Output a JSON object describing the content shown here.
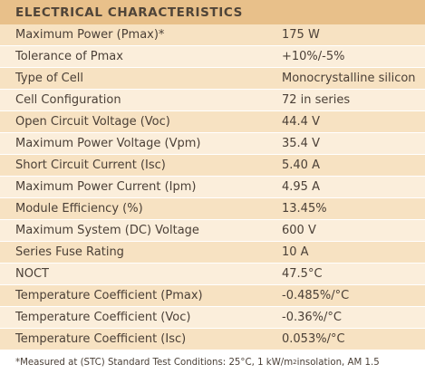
{
  "title": "ELECTRICAL CHARACTERISTICS",
  "rows": [
    {
      "label": "Maximum Power (Pmax)*",
      "value": "175 W"
    },
    {
      "label": "Tolerance of Pmax",
      "value": "+10%/-5%"
    },
    {
      "label": "Type of Cell",
      "value": "Monocrystalline silicon"
    },
    {
      "label": "Cell Configuration",
      "value": "72 in series"
    },
    {
      "label": "Open Circuit Voltage (Voc)",
      "value": "44.4 V"
    },
    {
      "label": "Maximum Power Voltage (Vpm)",
      "value": "35.4 V"
    },
    {
      "label": "Short Circuit Current (Isc)",
      "value": "5.40 A"
    },
    {
      "label": "Maximum Power Current (Ipm)",
      "value": "4.95 A"
    },
    {
      "label": "Module Efficiency (%)",
      "value": "13.45%"
    },
    {
      "label": "Maximum System (DC) Voltage",
      "value": "600 V"
    },
    {
      "label": "Series Fuse Rating",
      "value": "10 A"
    },
    {
      "label": "NOCT",
      "value": "47.5°C"
    },
    {
      "label": "Temperature Coefficient (Pmax)",
      "value": "-0.485%/°C"
    },
    {
      "label": "Temperature Coefficient (Voc)",
      "value": "-0.36%/°C"
    },
    {
      "label": "Temperature Coefficient (Isc)",
      "value": "0.053%/°C"
    }
  ],
  "footnote": {
    "before": "*Measured at (STC) Standard Test Conditions: 25°C, 1 kW/m",
    "sup": "2",
    "after": " insolation, AM 1.5"
  },
  "colors": {
    "header": "#e8c08a",
    "row_odd": "#f7e2c2",
    "row_even": "#fbeedb",
    "text": "#4b4037"
  }
}
